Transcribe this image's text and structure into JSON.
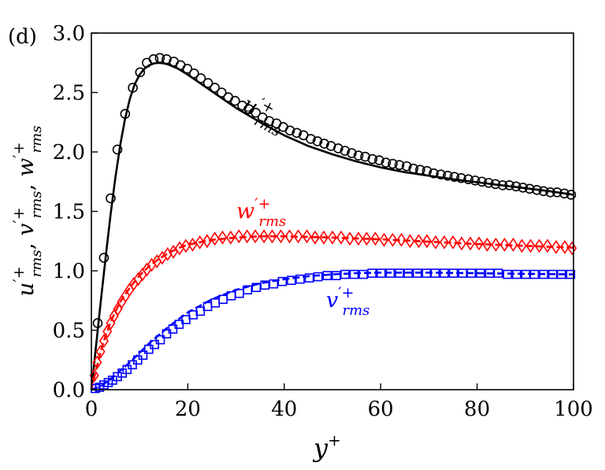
{
  "panel_label": "(d)",
  "chart_data": {
    "type": "line",
    "xlabel": "y⁺",
    "ylabel": "u′⁺rms, v′⁺rms, w′⁺rms",
    "xlim": [
      0,
      100
    ],
    "ylim": [
      0,
      3.0
    ],
    "x_ticks": [
      "0",
      "20",
      "40",
      "60",
      "80",
      "100"
    ],
    "y_ticks": [
      "0.0",
      "0.5",
      "1.0",
      "1.5",
      "2.0",
      "2.5",
      "3.0"
    ],
    "x_tick_values": [
      0,
      20,
      40,
      60,
      80,
      100
    ],
    "y_tick_values": [
      0,
      0.5,
      1.0,
      1.5,
      2.0,
      2.5,
      3.0
    ],
    "grid": false,
    "legend": "none",
    "series": [
      {
        "name": "u′⁺rms",
        "label_base": "u",
        "label_sup": "′+",
        "label_sub": "rms",
        "color": "#000000",
        "line_style": "solid",
        "marker": "circle",
        "line": [
          [
            0,
            0
          ],
          [
            1,
            0.38
          ],
          [
            2,
            0.76
          ],
          [
            3,
            1.13
          ],
          [
            4,
            1.48
          ],
          [
            5,
            1.79
          ],
          [
            6,
            2.06
          ],
          [
            7,
            2.28
          ],
          [
            8,
            2.45
          ],
          [
            9,
            2.57
          ],
          [
            10,
            2.65
          ],
          [
            11,
            2.7
          ],
          [
            12,
            2.73
          ],
          [
            13,
            2.745
          ],
          [
            14,
            2.75
          ],
          [
            15,
            2.745
          ],
          [
            16,
            2.735
          ],
          [
            18,
            2.7
          ],
          [
            20,
            2.65
          ],
          [
            25,
            2.51
          ],
          [
            30,
            2.37
          ],
          [
            35,
            2.25
          ],
          [
            40,
            2.14
          ],
          [
            45,
            2.05
          ],
          [
            50,
            1.98
          ],
          [
            55,
            1.92
          ],
          [
            60,
            1.87
          ],
          [
            65,
            1.83
          ],
          [
            70,
            1.8
          ],
          [
            75,
            1.77
          ],
          [
            80,
            1.745
          ],
          [
            85,
            1.72
          ],
          [
            90,
            1.695
          ],
          [
            95,
            1.67
          ],
          [
            100,
            1.64
          ]
        ],
        "markers": [
          [
            1.3,
            0.56
          ],
          [
            2.6,
            1.11
          ],
          [
            4.0,
            1.61
          ],
          [
            5.4,
            2.02
          ],
          [
            7.0,
            2.32
          ],
          [
            8.6,
            2.54
          ],
          [
            10.1,
            2.67
          ],
          [
            11.5,
            2.75
          ],
          [
            12.9,
            2.78
          ],
          [
            14.2,
            2.79
          ],
          [
            15.6,
            2.78
          ],
          [
            17.1,
            2.76
          ],
          [
            18.5,
            2.73
          ],
          [
            19.9,
            2.7
          ],
          [
            21.3,
            2.66
          ],
          [
            22.7,
            2.62
          ],
          [
            24.2,
            2.58
          ],
          [
            25.6,
            2.54
          ],
          [
            27.0,
            2.5
          ],
          [
            28.4,
            2.46
          ],
          [
            29.8,
            2.43
          ],
          [
            31.3,
            2.39
          ],
          [
            32.7,
            2.36
          ],
          [
            34.1,
            2.33
          ],
          [
            35.5,
            2.29
          ],
          [
            36.9,
            2.26
          ],
          [
            38.4,
            2.24
          ],
          [
            39.8,
            2.21
          ],
          [
            41.2,
            2.18
          ],
          [
            42.6,
            2.16
          ],
          [
            44.0,
            2.14
          ],
          [
            45.5,
            2.11
          ],
          [
            46.9,
            2.09
          ],
          [
            48.3,
            2.07
          ],
          [
            49.7,
            2.05
          ],
          [
            51.2,
            2.03
          ],
          [
            52.6,
            2.01
          ],
          [
            54.0,
            1.99
          ],
          [
            55.4,
            1.97
          ],
          [
            56.8,
            1.96
          ],
          [
            58.3,
            1.94
          ],
          [
            59.7,
            1.93
          ],
          [
            61.1,
            1.91
          ],
          [
            62.5,
            1.9
          ],
          [
            63.9,
            1.89
          ],
          [
            65.4,
            1.88
          ],
          [
            66.8,
            1.86
          ],
          [
            68.2,
            1.85
          ],
          [
            69.6,
            1.84
          ],
          [
            71.0,
            1.82
          ],
          [
            72.5,
            1.81
          ],
          [
            73.9,
            1.8
          ],
          [
            75.3,
            1.79
          ],
          [
            76.7,
            1.78
          ],
          [
            78.2,
            1.77
          ],
          [
            79.6,
            1.76
          ],
          [
            81.0,
            1.75
          ],
          [
            82.4,
            1.74
          ],
          [
            83.8,
            1.73
          ],
          [
            85.3,
            1.72
          ],
          [
            86.7,
            1.72
          ],
          [
            88.1,
            1.71
          ],
          [
            89.5,
            1.7
          ],
          [
            90.9,
            1.69
          ],
          [
            92.4,
            1.68
          ],
          [
            93.8,
            1.67
          ],
          [
            95.2,
            1.66
          ],
          [
            96.6,
            1.66
          ],
          [
            98.1,
            1.65
          ],
          [
            99.5,
            1.64
          ]
        ]
      },
      {
        "name": "w′⁺rms",
        "label_base": "w",
        "label_sup": "′+",
        "label_sub": "rms",
        "color": "#ff0000",
        "line_style": "dashed",
        "marker": "diamond",
        "line": [
          [
            0,
            0
          ],
          [
            1,
            0.17
          ],
          [
            2,
            0.33
          ],
          [
            3,
            0.46
          ],
          [
            4,
            0.57
          ],
          [
            5,
            0.66
          ],
          [
            6,
            0.74
          ],
          [
            8,
            0.86
          ],
          [
            10,
            0.96
          ],
          [
            12,
            1.04
          ],
          [
            14,
            1.1
          ],
          [
            16,
            1.15
          ],
          [
            18,
            1.19
          ],
          [
            20,
            1.22
          ],
          [
            25,
            1.26
          ],
          [
            30,
            1.28
          ],
          [
            35,
            1.29
          ],
          [
            40,
            1.29
          ],
          [
            45,
            1.285
          ],
          [
            50,
            1.28
          ],
          [
            60,
            1.265
          ],
          [
            70,
            1.245
          ],
          [
            80,
            1.225
          ],
          [
            90,
            1.21
          ],
          [
            100,
            1.195
          ]
        ],
        "markers": [
          [
            0.6,
            0.12
          ],
          [
            1.2,
            0.23
          ],
          [
            1.9,
            0.32
          ],
          [
            2.6,
            0.41
          ],
          [
            3.3,
            0.49
          ],
          [
            4.0,
            0.56
          ],
          [
            4.7,
            0.62
          ],
          [
            5.5,
            0.68
          ],
          [
            6.3,
            0.74
          ],
          [
            7.1,
            0.79
          ],
          [
            7.9,
            0.84
          ],
          [
            8.8,
            0.89
          ],
          [
            9.7,
            0.93
          ],
          [
            10.6,
            0.97
          ],
          [
            11.5,
            1.01
          ],
          [
            12.5,
            1.05
          ],
          [
            13.6,
            1.08
          ],
          [
            14.7,
            1.11
          ],
          [
            15.8,
            1.14
          ],
          [
            17.0,
            1.16
          ],
          [
            18.3,
            1.19
          ],
          [
            19.6,
            1.21
          ],
          [
            21.0,
            1.22
          ],
          [
            22.5,
            1.24
          ],
          [
            24.0,
            1.25
          ],
          [
            25.6,
            1.27
          ],
          [
            27.2,
            1.28
          ],
          [
            28.9,
            1.28
          ],
          [
            30.6,
            1.29
          ],
          [
            32.3,
            1.29
          ],
          [
            34.0,
            1.29
          ],
          [
            35.8,
            1.29
          ],
          [
            37.5,
            1.29
          ],
          [
            39.3,
            1.29
          ],
          [
            41.1,
            1.29
          ],
          [
            42.9,
            1.29
          ],
          [
            44.7,
            1.29
          ],
          [
            46.4,
            1.28
          ],
          [
            48.2,
            1.28
          ],
          [
            50.0,
            1.28
          ],
          [
            51.8,
            1.28
          ],
          [
            53.6,
            1.27
          ],
          [
            55.4,
            1.27
          ],
          [
            57.1,
            1.27
          ],
          [
            58.9,
            1.27
          ],
          [
            60.7,
            1.26
          ],
          [
            62.5,
            1.26
          ],
          [
            64.3,
            1.26
          ],
          [
            66.1,
            1.25
          ],
          [
            67.9,
            1.25
          ],
          [
            69.6,
            1.25
          ],
          [
            71.4,
            1.24
          ],
          [
            73.2,
            1.24
          ],
          [
            75.0,
            1.24
          ],
          [
            76.8,
            1.23
          ],
          [
            78.6,
            1.23
          ],
          [
            80.4,
            1.23
          ],
          [
            82.1,
            1.22
          ],
          [
            83.9,
            1.22
          ],
          [
            85.7,
            1.22
          ],
          [
            87.5,
            1.22
          ],
          [
            89.3,
            1.21
          ],
          [
            91.1,
            1.21
          ],
          [
            92.9,
            1.21
          ],
          [
            94.6,
            1.21
          ],
          [
            96.4,
            1.2
          ],
          [
            98.2,
            1.2
          ],
          [
            99.7,
            1.19
          ]
        ]
      },
      {
        "name": "v′⁺rms",
        "label_base": "v",
        "label_sup": "′+",
        "label_sub": "rms",
        "color": "#0000ff",
        "line_style": "dashed",
        "marker": "square",
        "line": [
          [
            0,
            0
          ],
          [
            2,
            0.03
          ],
          [
            4,
            0.09
          ],
          [
            6,
            0.16
          ],
          [
            8,
            0.23
          ],
          [
            10,
            0.31
          ],
          [
            12,
            0.39
          ],
          [
            14,
            0.46
          ],
          [
            16,
            0.53
          ],
          [
            18,
            0.59
          ],
          [
            20,
            0.65
          ],
          [
            25,
            0.76
          ],
          [
            30,
            0.84
          ],
          [
            35,
            0.895
          ],
          [
            40,
            0.93
          ],
          [
            45,
            0.955
          ],
          [
            50,
            0.97
          ],
          [
            55,
            0.98
          ],
          [
            60,
            0.985
          ],
          [
            70,
            0.985
          ],
          [
            80,
            0.98
          ],
          [
            90,
            0.975
          ],
          [
            100,
            0.97
          ]
        ],
        "markers": [
          [
            0.8,
            0.01
          ],
          [
            1.7,
            0.02
          ],
          [
            2.6,
            0.04
          ],
          [
            3.5,
            0.06
          ],
          [
            4.4,
            0.08
          ],
          [
            5.4,
            0.11
          ],
          [
            6.4,
            0.14
          ],
          [
            7.4,
            0.17
          ],
          [
            8.5,
            0.21
          ],
          [
            9.6,
            0.25
          ],
          [
            10.7,
            0.29
          ],
          [
            11.9,
            0.34
          ],
          [
            13.1,
            0.38
          ],
          [
            14.3,
            0.42
          ],
          [
            15.6,
            0.47
          ],
          [
            16.9,
            0.51
          ],
          [
            18.2,
            0.55
          ],
          [
            19.6,
            0.59
          ],
          [
            21.1,
            0.63
          ],
          [
            22.6,
            0.66
          ],
          [
            24.1,
            0.7
          ],
          [
            25.7,
            0.73
          ],
          [
            27.3,
            0.76
          ],
          [
            29.0,
            0.79
          ],
          [
            30.7,
            0.81
          ],
          [
            32.4,
            0.84
          ],
          [
            34.2,
            0.86
          ],
          [
            36.0,
            0.88
          ],
          [
            37.8,
            0.89
          ],
          [
            39.6,
            0.91
          ],
          [
            41.5,
            0.92
          ],
          [
            43.3,
            0.93
          ],
          [
            45.2,
            0.94
          ],
          [
            47.0,
            0.95
          ],
          [
            48.9,
            0.96
          ],
          [
            50.8,
            0.96
          ],
          [
            52.6,
            0.97
          ],
          [
            54.5,
            0.97
          ],
          [
            56.4,
            0.97
          ],
          [
            58.2,
            0.98
          ],
          [
            60.1,
            0.98
          ],
          [
            62.0,
            0.98
          ],
          [
            63.9,
            0.98
          ],
          [
            65.7,
            0.98
          ],
          [
            67.6,
            0.98
          ],
          [
            69.5,
            0.98
          ],
          [
            71.3,
            0.98
          ],
          [
            73.2,
            0.98
          ],
          [
            75.1,
            0.98
          ],
          [
            77.0,
            0.98
          ],
          [
            78.8,
            0.98
          ],
          [
            80.7,
            0.98
          ],
          [
            82.6,
            0.98
          ],
          [
            84.4,
            0.98
          ],
          [
            86.3,
            0.97
          ],
          [
            88.2,
            0.97
          ],
          [
            90.1,
            0.97
          ],
          [
            91.9,
            0.97
          ],
          [
            93.8,
            0.97
          ],
          [
            95.7,
            0.97
          ],
          [
            97.5,
            0.97
          ],
          [
            99.4,
            0.97
          ]
        ]
      }
    ]
  }
}
